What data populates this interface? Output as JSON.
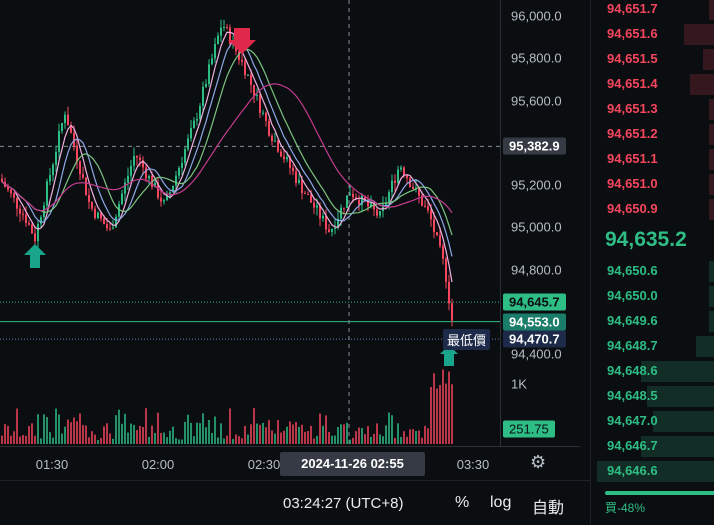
{
  "chart_data": {
    "type": "candlestick",
    "ylim": [
      94370,
      96100
    ],
    "y_ticks": [
      "96,000.0",
      "95,800.0",
      "95,600.0",
      "95,200.0",
      "95,000.0",
      "94,800.0",
      "94,400.0"
    ],
    "x_ticks": [
      "01:30",
      "02:00",
      "02:30",
      "03:30"
    ],
    "volume_axis_label": "1K",
    "volume_last": "251.75",
    "price_tags": [
      {
        "label": "95,382.9",
        "price": 95382.9,
        "style": "crosshair"
      },
      {
        "label": "94,645.7",
        "price": 94645.7,
        "style": "bid"
      },
      {
        "label": "94,553.0",
        "price": 94553.0,
        "style": "last"
      },
      {
        "label": "94,470.7",
        "price": 94470.7,
        "style": "low",
        "caption": "最低價"
      }
    ],
    "crosshair_time": "2024-11-26   02:55",
    "colors": {
      "up": "#2ebd85",
      "down": "#f6465d",
      "ma_fast": "#f0b0e0",
      "ma_mid": "#8fa8e8",
      "ma_slow": "#7bc47f",
      "ma_long": "#c43b8f"
    }
  },
  "timezone_clock": "03:24:27 (UTC+8)",
  "bottom_bar": {
    "percent": "%",
    "log": "log",
    "auto": "自動"
  },
  "orderbook": {
    "asks": [
      "94,651.7",
      "94,651.6",
      "94,651.5",
      "94,651.4",
      "94,651.3",
      "94,651.2",
      "94,651.1",
      "94,651.0",
      "94,650.9"
    ],
    "ask_depth": [
      0.05,
      0.25,
      0.1,
      0.2,
      0.05,
      0.05,
      0.05,
      0.05,
      0.05
    ],
    "mid": "94,635.2",
    "bids": [
      "94,650.6",
      "94,650.0",
      "94,649.6",
      "94,648.7",
      "94,648.6",
      "94,648.5",
      "94,647.0",
      "94,646.7",
      "94,646.6"
    ],
    "bid_depth": [
      0.05,
      0.05,
      0.05,
      0.15,
      0.6,
      0.55,
      0.5,
      0.6,
      0.95
    ],
    "ratio_label": "買-48%"
  }
}
